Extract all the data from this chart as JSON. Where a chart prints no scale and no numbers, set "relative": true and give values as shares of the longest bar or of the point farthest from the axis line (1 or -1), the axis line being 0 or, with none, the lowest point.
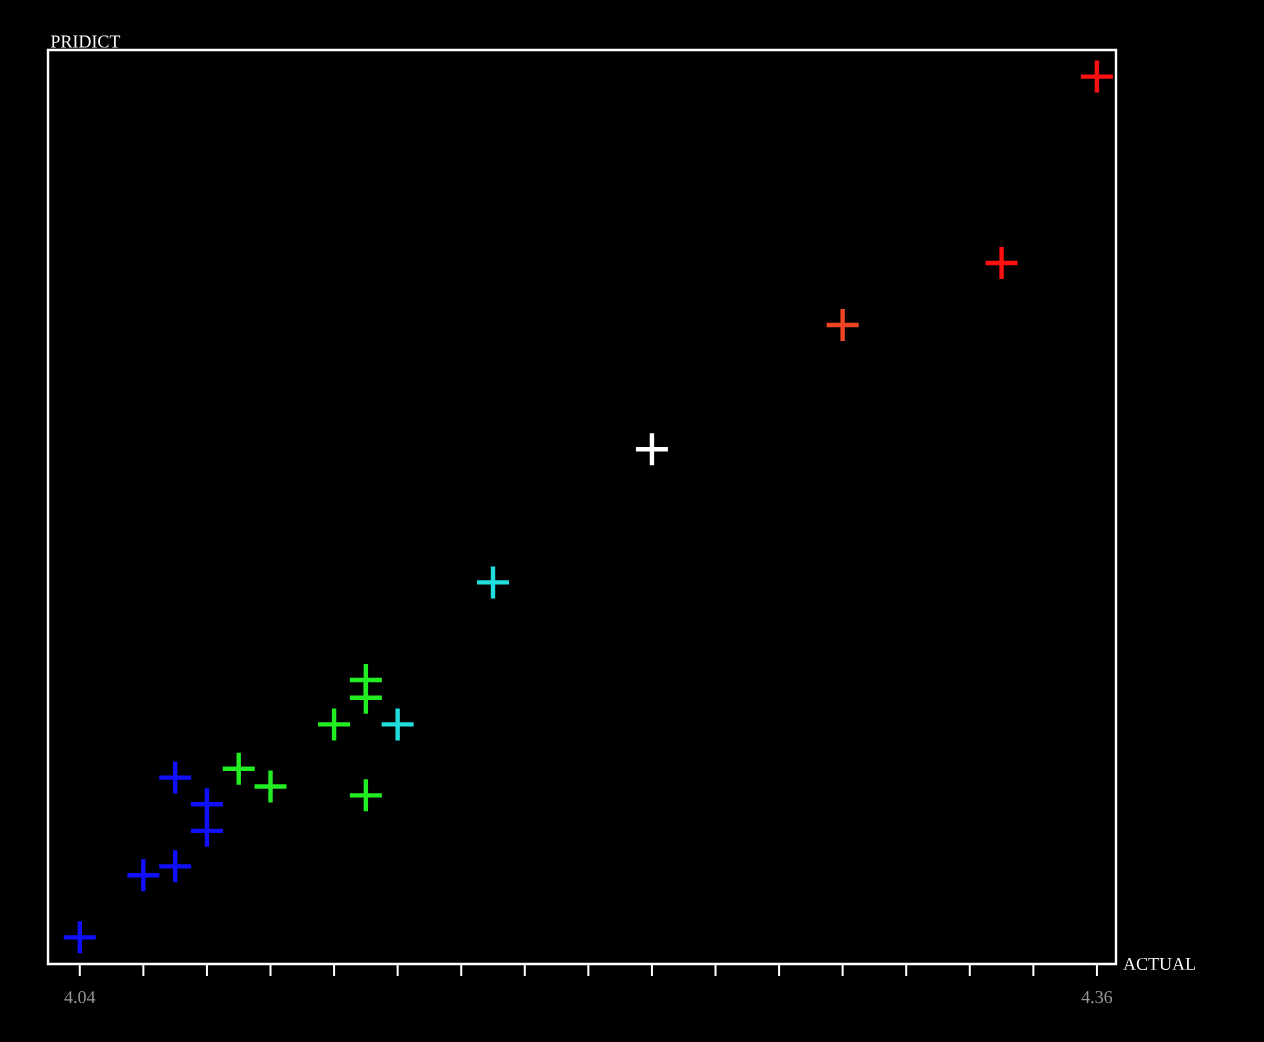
{
  "chart_data": {
    "type": "scatter",
    "xlabel": "ACTUAL",
    "ylabel": "PRIDICT",
    "relative": true,
    "marker": "cross",
    "xlim": [
      4.03,
      4.366
    ],
    "xticks": [
      4.04,
      {
        "value": 4.06,
        "label": null
      },
      {
        "value": 4.08,
        "label": null
      },
      {
        "value": 4.1,
        "label": null
      },
      {
        "value": 4.12,
        "label": null
      },
      {
        "value": 4.14,
        "label": null
      },
      {
        "value": 4.16,
        "label": null
      },
      {
        "value": 4.18,
        "label": null
      },
      {
        "value": 4.2,
        "label": null
      },
      {
        "value": 4.22,
        "label": null
      },
      {
        "value": 4.24,
        "label": null
      },
      {
        "value": 4.26,
        "label": null
      },
      {
        "value": 4.28,
        "label": null
      },
      {
        "value": 4.3,
        "label": null
      },
      {
        "value": 4.32,
        "label": null
      },
      {
        "value": 4.34,
        "label": null
      },
      4.36
    ],
    "series": [
      {
        "color": "#1010ff",
        "x": [
          4.04,
          4.06,
          4.07,
          4.07,
          4.08,
          4.08
        ],
        "values": [
          0.03,
          0.1,
          0.11,
          0.21,
          0.18,
          0.15
        ]
      },
      {
        "color": "#22ee22",
        "x": [
          4.09,
          4.1,
          4.12,
          4.13,
          4.13,
          4.13
        ],
        "values": [
          0.22,
          0.2,
          0.27,
          0.32,
          0.3,
          0.19
        ]
      },
      {
        "color": "#22dddd",
        "x": [
          4.14,
          4.17
        ],
        "values": [
          0.27,
          0.43
        ]
      },
      {
        "color": "#ffffff",
        "x": [
          4.22
        ],
        "values": [
          0.58
        ]
      },
      {
        "color": "#ee4422",
        "x": [
          4.28
        ],
        "values": [
          0.72
        ]
      },
      {
        "color": "#ff1010",
        "x": [
          4.33,
          4.36
        ],
        "values": [
          0.79,
          1
        ]
      }
    ]
  }
}
